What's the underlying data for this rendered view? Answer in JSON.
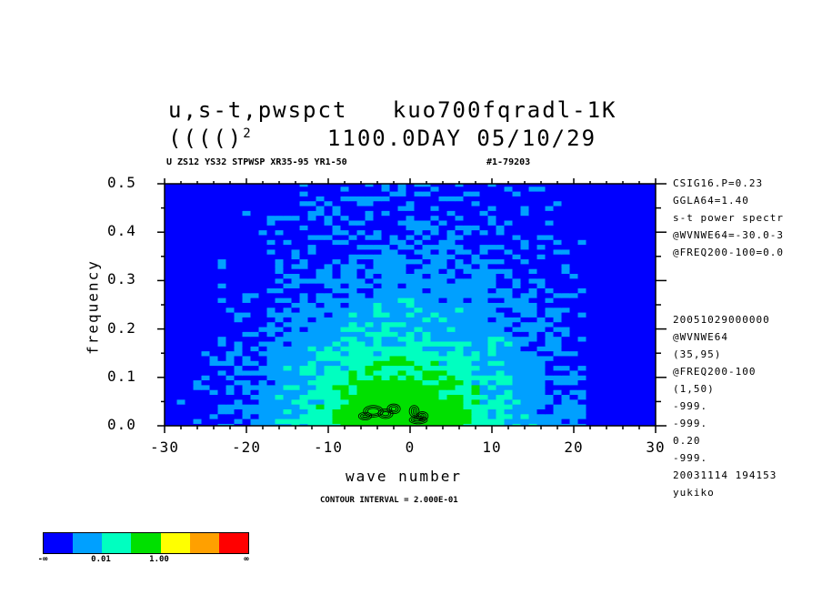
{
  "header": {
    "title_line1": "u,s-t,pwspct   kuo700fqradl-1K",
    "title_line2_a": "(((()",
    "title_line2_sup": "2",
    "title_line2_b": "     1100.0DAY 05/10/29",
    "subtitle_left": "U ZS12 YS32 STPWSP XR35-95 YR1-50",
    "subtitle_right": "#1-79203"
  },
  "side_info": {
    "top": [
      "CSIG16.P=0.23",
      "GGLA64=1.40",
      "s-t power spectr",
      "@WVNWE64=-30.0-3",
      "@FREQ200-100=0.0"
    ],
    "bottom": [
      "20051029000000",
      "@WVNWE64",
      "(35,95)",
      "@FREQ200-100",
      "(1,50)",
      "-999.",
      "-999.",
      "0.20",
      "-999.",
      "20031114 194153",
      "yukiko"
    ]
  },
  "footer": {
    "contour_interval": "CONTOUR INTERVAL = 2.000E-01"
  },
  "colorbar": {
    "colors": [
      "#0000ff",
      "#00a0ff",
      "#00ffc0",
      "#00e000",
      "#ffff00",
      "#ffa000",
      "#ff0000"
    ],
    "labels": [
      "-∞",
      "0.01",
      "1.00",
      "∞"
    ]
  },
  "chart_data": {
    "type": "heatmap",
    "title": "u,s-t,pwspct   kuo700fqradl-1K",
    "xlabel": "wave number",
    "ylabel": "frequency",
    "xlim": [
      -30,
      30
    ],
    "ylim": [
      0,
      0.5
    ],
    "x_ticks": [
      "-30",
      "-20",
      "-10",
      "0",
      "10",
      "20",
      "30"
    ],
    "y_ticks": [
      "0.0",
      "0.1",
      "0.2",
      "0.3",
      "0.4",
      "0.5"
    ],
    "contour_interval": "2.000E-01",
    "levels": [
      "-∞",
      "0.01",
      "1.00",
      "∞"
    ],
    "regions": [
      {
        "level": "deep-blue",
        "extent": "background, dominant at x>20 and high frequency"
      },
      {
        "level": "light-blue",
        "x": [
          -28,
          20
        ],
        "y": [
          0,
          0.5
        ]
      },
      {
        "level": "cyan-green",
        "x": [
          -15,
          10
        ],
        "y": [
          0,
          0.32
        ]
      },
      {
        "level": "green",
        "x": [
          -8,
          3
        ],
        "y": [
          0,
          0.1
        ]
      },
      {
        "level": "black contours",
        "x": [
          -5,
          2
        ],
        "y": [
          0,
          0.05
        ]
      }
    ]
  }
}
